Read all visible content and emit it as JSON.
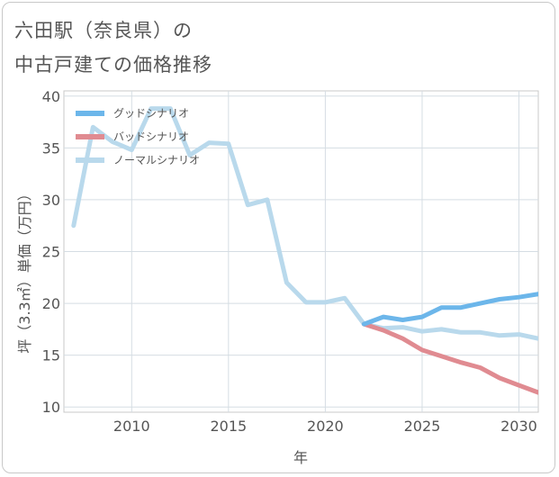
{
  "header": {
    "title_line1": "六田駅（奈良県）の",
    "title_line2": "中古戸建ての価格推移"
  },
  "chart_data": {
    "type": "line",
    "title": "六田駅（奈良県）の 中古戸建ての価格推移",
    "xlabel": "年",
    "ylabel": "坪（3.3㎡）単価（万円）",
    "xlim": [
      2006.5,
      2031
    ],
    "ylim": [
      9.5,
      40.5
    ],
    "xticks": [
      2010,
      2015,
      2020,
      2025,
      2030
    ],
    "yticks": [
      10,
      15,
      20,
      25,
      30,
      35,
      40
    ],
    "grid": true,
    "legend_position": "top-left",
    "series": [
      {
        "name": "グッドシナリオ",
        "color": "#6cb6ea",
        "x": [
          2022,
          2023,
          2024,
          2025,
          2026,
          2027,
          2028,
          2029,
          2030,
          2031
        ],
        "y": [
          18.0,
          18.7,
          18.4,
          18.7,
          19.6,
          19.6,
          20.0,
          20.4,
          20.6,
          20.9
        ]
      },
      {
        "name": "バッドシナリオ",
        "color": "#e08b91",
        "x": [
          2022,
          2023,
          2024,
          2025,
          2026,
          2027,
          2028,
          2029,
          2030,
          2031
        ],
        "y": [
          18.0,
          17.4,
          16.6,
          15.5,
          14.9,
          14.3,
          13.8,
          12.8,
          12.1,
          11.4
        ]
      },
      {
        "name": "ノーマルシナリオ",
        "color": "#b9d9ec",
        "x": [
          2007,
          2008,
          2009,
          2010,
          2011,
          2012,
          2013,
          2014,
          2015,
          2016,
          2017,
          2018,
          2019,
          2020,
          2021,
          2022,
          2023,
          2024,
          2025,
          2026,
          2027,
          2028,
          2029,
          2030,
          2031
        ],
        "y": [
          27.5,
          37.0,
          35.6,
          34.8,
          38.8,
          38.8,
          34.3,
          35.5,
          35.4,
          29.5,
          30.0,
          22.0,
          20.1,
          20.1,
          20.5,
          18.0,
          17.6,
          17.7,
          17.3,
          17.5,
          17.2,
          17.2,
          16.9,
          17.0,
          16.6
        ]
      }
    ]
  }
}
